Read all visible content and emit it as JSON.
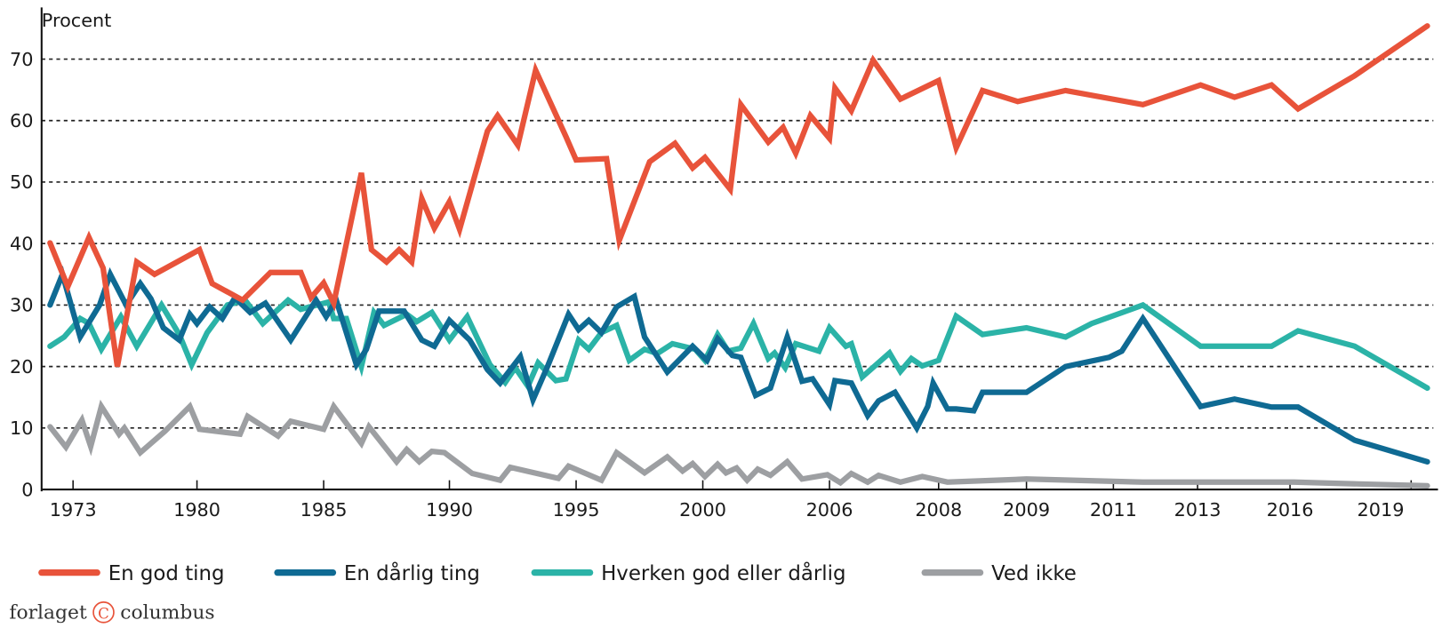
{
  "chart_data": {
    "type": "line",
    "title": "",
    "ylabel": "Procent",
    "xlabel": "",
    "ylim": [
      0,
      70
    ],
    "yticks": [
      0,
      10,
      20,
      30,
      40,
      50,
      60,
      70
    ],
    "xticks": [
      "1973",
      "1980",
      "1985",
      "1990",
      "1995",
      "2000",
      "2006",
      "2008",
      "2009",
      "2011",
      "2013",
      "2016",
      "2019"
    ],
    "xtick_years": [
      1973,
      1980,
      1985,
      1990,
      1995,
      2000,
      2006,
      2008,
      2009,
      2011,
      2013,
      2016,
      2019
    ],
    "grid": "horizontal dotted",
    "legend_position": "bottom",
    "series": [
      {
        "name": "En god ting",
        "color": "#e8533a",
        "x": [
          1971.7,
          1972.7,
          1973.9,
          1974.7,
          1975.5,
          1976.6,
          1977.6,
          1980.1,
          1980.6,
          1981.8,
          1982.9,
          1984.1,
          1984.5,
          1985.0,
          1985.4,
          1986.5,
          1986.9,
          1987.5,
          1988.0,
          1988.5,
          1988.9,
          1989.4,
          1990.0,
          1990.4,
          1991.5,
          1991.9,
          1992.7,
          1993.4,
          1994.6,
          1995.0,
          1996.2,
          1996.7,
          1997.9,
          1998.9,
          1999.6,
          2000.1,
          2001.3,
          2001.8,
          2003.1,
          2003.8,
          2004.4,
          2005.1,
          2006.0,
          2006.1,
          2006.4,
          2006.8,
          2007.3,
          2008.0,
          2008.2,
          2008.5,
          2008.9,
          2009.9,
          2011.7,
          2013.1,
          2014.2,
          2015.4,
          2016.2,
          2017.6,
          2019.4
        ],
        "y": [
          40.1,
          33,
          41,
          36,
          20,
          37,
          35,
          39,
          33.5,
          30.8,
          35.3,
          35.3,
          31.2,
          33.6,
          30.3,
          51.5,
          39,
          37,
          39,
          37,
          47.3,
          42.5,
          46.8,
          42.3,
          58.3,
          60.8,
          56,
          68.2,
          57.4,
          53.6,
          53.8,
          40.5,
          53.3,
          56.3,
          52.3,
          54,
          48.8,
          62.6,
          56.5,
          58.9,
          54.7,
          60.8,
          57.1,
          65.3,
          61.6,
          69.8,
          63.5,
          66.5,
          55.6,
          64.9,
          63.1,
          64.9,
          62.6,
          65.8,
          63.8,
          65.8,
          61.9,
          67.3,
          75.4
        ]
      },
      {
        "name": "En dårlig ting",
        "color": "#0f6a93",
        "x": [
          1971.7,
          1972.4,
          1973.4,
          1974.5,
          1975.1,
          1976.0,
          1976.8,
          1977.4,
          1978.1,
          1979.0,
          1979.6,
          1980.0,
          1980.5,
          1981.0,
          1981.5,
          1982.1,
          1982.7,
          1983.7,
          1984.7,
          1985.1,
          1985.5,
          1986.3,
          1986.7,
          1987.2,
          1988.2,
          1988.9,
          1989.4,
          1990.0,
          1990.8,
          1991.5,
          1992.0,
          1992.8,
          1993.3,
          1993.9,
          1994.7,
          1995.1,
          1995.5,
          1996.0,
          1996.6,
          1997.3,
          1997.7,
          1998.6,
          1999.6,
          2000.2,
          2000.7,
          2001.4,
          2001.8,
          2002.5,
          2003.2,
          2004.0,
          2004.7,
          2005.2,
          2006.0,
          2006.1,
          2006.4,
          2006.7,
          2006.9,
          2007.2,
          2007.6,
          2007.8,
          2007.9,
          2008.1,
          2008.2,
          2008.4,
          2008.5,
          2009.0,
          2009.9,
          2010.9,
          2011.2,
          2011.7,
          2013.1,
          2014.2,
          2015.4,
          2016.2,
          2017.6,
          2019.4
        ],
        "y": [
          30,
          35,
          24.8,
          30,
          35,
          30,
          33.5,
          31,
          26.3,
          24.3,
          28.5,
          27,
          29.7,
          27.8,
          31.2,
          28.8,
          30.3,
          24.3,
          30.8,
          28.1,
          30.8,
          20.3,
          22.8,
          29,
          29,
          24.3,
          23.3,
          27.5,
          24.3,
          19.5,
          17.3,
          21.6,
          14.6,
          20.3,
          28.5,
          26,
          27.5,
          25.5,
          29.7,
          31.4,
          24.8,
          19.1,
          23.3,
          21,
          24.5,
          21.8,
          21.5,
          15.3,
          16.5,
          24.8,
          17.6,
          18,
          13.8,
          17.7,
          17.3,
          12,
          14.4,
          15.8,
          10,
          13.5,
          17.3,
          13.1,
          13.1,
          12.8,
          15.8,
          15.8,
          20,
          21.5,
          22.5,
          27.8,
          13.5,
          14.7,
          13.4,
          13.4,
          8,
          4.5
        ]
      },
      {
        "name": "Hverken god eller dårlig",
        "color": "#2bb3a7",
        "x": [
          1971.7,
          1972.5,
          1973.4,
          1973.9,
          1974.6,
          1975.7,
          1976.6,
          1978.0,
          1979.0,
          1979.7,
          1980.4,
          1981.2,
          1981.9,
          1982.6,
          1983.6,
          1984.1,
          1985.2,
          1985.4,
          1985.9,
          1986.5,
          1987.0,
          1987.4,
          1988.3,
          1988.7,
          1989.3,
          1990.0,
          1990.7,
          1991.6,
          1992.2,
          1992.6,
          1993.1,
          1993.5,
          1994.2,
          1994.6,
          1995.1,
          1995.5,
          1996.0,
          1996.6,
          1997.1,
          1997.7,
          1998.2,
          1998.8,
          1999.7,
          2000.1,
          2000.7,
          2001.2,
          2001.8,
          2002.4,
          2003.1,
          2003.4,
          2003.9,
          2004.4,
          2005.5,
          2006.0,
          2006.3,
          2006.4,
          2006.6,
          2007.1,
          2007.3,
          2007.5,
          2007.7,
          2008.0,
          2008.2,
          2008.5,
          2009.0,
          2009.9,
          2010.5,
          2011.7,
          2013.1,
          2014.2,
          2015.4,
          2016.2,
          2017.6,
          2019.4
        ],
        "y": [
          23.3,
          24.8,
          27.8,
          27,
          22.8,
          28.1,
          23.3,
          30,
          25.2,
          20.3,
          25.5,
          30,
          30.8,
          27,
          30.8,
          29.3,
          30.5,
          27.8,
          27.8,
          20,
          28.8,
          26.7,
          28.5,
          27.3,
          28.8,
          24.3,
          28.1,
          20.3,
          17.4,
          19.8,
          16.8,
          20.6,
          17.7,
          18,
          24.3,
          22.8,
          25.5,
          26.7,
          21,
          22.8,
          22.1,
          23.7,
          22.8,
          21,
          25.2,
          22.5,
          23,
          27,
          21.3,
          22.2,
          19.8,
          23.7,
          22.5,
          26.3,
          23.3,
          23.7,
          18.3,
          22.2,
          19.2,
          21.3,
          20.1,
          21,
          28.2,
          25.2,
          26.3,
          24.8,
          27,
          30,
          23.3,
          23.3,
          23.3,
          25.8,
          23.3,
          16.5
        ]
      },
      {
        "name": "Ved ikke",
        "color": "#9d9fa2",
        "x": [
          1971.7,
          1972.6,
          1973.5,
          1974.0,
          1974.6,
          1975.6,
          1975.9,
          1976.8,
          1978.2,
          1979.6,
          1980.1,
          1981.7,
          1982.0,
          1983.2,
          1983.7,
          1985.0,
          1985.4,
          1986.5,
          1986.8,
          1987.9,
          1988.3,
          1988.8,
          1989.3,
          1989.8,
          1990.9,
          1992.0,
          1992.4,
          1994.3,
          1994.7,
          1996.0,
          1996.6,
          1997.7,
          1998.6,
          1999.2,
          1999.6,
          2000.1,
          2000.7,
          2001.1,
          2001.6,
          2002.1,
          2002.6,
          2003.2,
          2004.0,
          2004.7,
          2005.9,
          2006.2,
          2006.4,
          2006.7,
          2006.9,
          2007.3,
          2007.7,
          2008.1,
          2009.0,
          2011.7,
          2016.1,
          2017.7,
          2019.4
        ],
        "y": [
          10.2,
          6.9,
          11.3,
          7,
          13.5,
          9,
          10,
          6,
          9.5,
          13.5,
          9.8,
          9,
          11.9,
          8.7,
          11.1,
          9.8,
          13.5,
          7.5,
          10.2,
          4.5,
          6.5,
          4.5,
          6.2,
          6,
          2.6,
          1.5,
          3.6,
          1.8,
          3.8,
          1.5,
          6,
          2.7,
          5.3,
          3,
          4.2,
          2.1,
          4.1,
          2.7,
          3.5,
          1.5,
          3.3,
          2.3,
          4.5,
          1.7,
          2.4,
          1.1,
          2.6,
          1.2,
          2.3,
          1.2,
          2.1,
          1.2,
          1.7,
          1.2,
          1.2,
          0.9,
          0.6
        ]
      }
    ]
  },
  "logo": {
    "text_left": "forlaget",
    "symbol": "C",
    "text_right": "columbus",
    "color": "#e8533a"
  }
}
